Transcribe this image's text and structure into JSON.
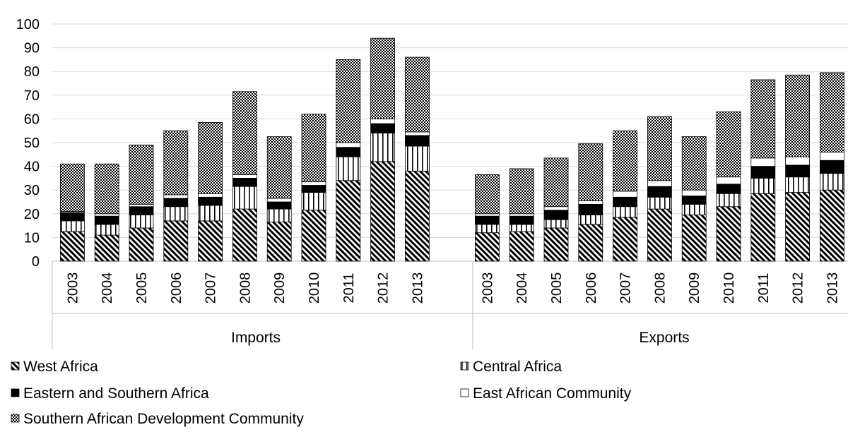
{
  "chart_data": {
    "type": "bar",
    "stacked": true,
    "ylim": [
      0,
      100
    ],
    "yticks": [
      0,
      10,
      20,
      30,
      40,
      50,
      60,
      70,
      80,
      90,
      100
    ],
    "grid": true,
    "legend_position": "bottom",
    "groups": [
      {
        "label": "Imports",
        "categories": [
          "2003",
          "2004",
          "2005",
          "2006",
          "2007",
          "2008",
          "2009",
          "2010",
          "2011",
          "2012",
          "2013"
        ],
        "series": [
          {
            "name": "West Africa",
            "values": [
              12.5,
              11,
              14,
              17,
              17,
              22,
              16.5,
              21.5,
              34,
              42,
              38
            ]
          },
          {
            "name": "Central Africa",
            "values": [
              4.5,
              4.5,
              5.5,
              6,
              6.5,
              9.5,
              5.5,
              7.5,
              10,
              12,
              10.5
            ]
          },
          {
            "name": "Eastern and Southern Africa",
            "values": [
              3.5,
              3.5,
              3.5,
              3.5,
              3.5,
              3.5,
              3,
              3,
              4,
              4,
              4.5
            ]
          },
          {
            "name": "East African Community",
            "values": [
              0.5,
              1,
              1,
              1.5,
              1.5,
              1.5,
              1.5,
              1.5,
              2,
              2,
              1.5
            ]
          },
          {
            "name": "Southern African Development Community",
            "values": [
              20,
              21,
              25,
              27,
              30,
              35,
              26,
              28.5,
              35,
              34,
              31.5
            ]
          }
        ]
      },
      {
        "label": "Exports",
        "categories": [
          "2003",
          "2004",
          "2005",
          "2006",
          "2007",
          "2008",
          "2009",
          "2010",
          "2011",
          "2012",
          "2013"
        ],
        "series": [
          {
            "name": "West Africa",
            "values": [
              12,
              12.5,
              14,
              15.5,
              18.5,
              22,
              19.5,
              23,
              28.5,
              29,
              30
            ]
          },
          {
            "name": "Central Africa",
            "values": [
              3.5,
              3,
              3.5,
              4,
              4.5,
              5,
              4.5,
              5.5,
              6.5,
              6.5,
              7
            ]
          },
          {
            "name": "Eastern and Southern Africa",
            "values": [
              3.5,
              3.5,
              4,
              4.5,
              4,
              4.5,
              3.5,
              4,
              5,
              5,
              5.5
            ]
          },
          {
            "name": "East African Community",
            "values": [
              1,
              1,
              1.5,
              1.5,
              2.5,
              2.5,
              2.5,
              3,
              3.5,
              3.5,
              3.5
            ]
          },
          {
            "name": "Southern African Development Community",
            "values": [
              16.5,
              19,
              20.5,
              24,
              25.5,
              27,
              22.5,
              27.5,
              33,
              34.5,
              33.5
            ]
          }
        ]
      }
    ],
    "patterns": [
      "diagonal-stripes",
      "vertical-stripes",
      "solid-black",
      "white",
      "checkerboard"
    ]
  }
}
